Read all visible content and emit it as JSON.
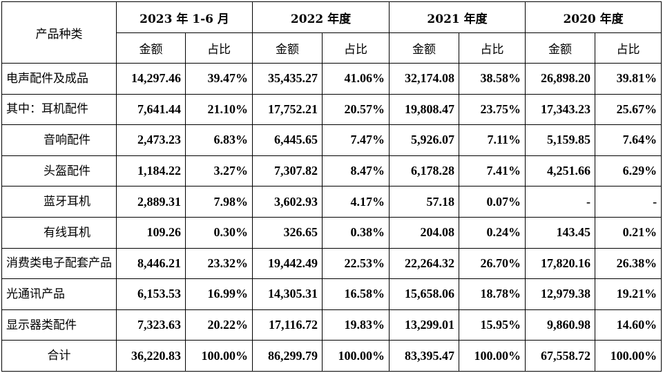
{
  "table": {
    "corner_label": "产品种类",
    "periods": [
      "2023 年 1-6 月",
      "2022 年度",
      "2021 年度",
      "2020 年度"
    ],
    "sub_headers": {
      "amount": "金额",
      "ratio": "占比"
    },
    "rows": [
      {
        "category": "电声配件及成品",
        "indent": false,
        "values": [
          "14,297.46",
          "39.47%",
          "35,435.27",
          "41.06%",
          "32,174.08",
          "38.58%",
          "26,898.20",
          "39.81%"
        ]
      },
      {
        "category": "其中：耳机配件",
        "indent": false,
        "values": [
          "7,641.44",
          "21.10%",
          "17,752.21",
          "20.57%",
          "19,808.47",
          "23.75%",
          "17,343.23",
          "25.67%"
        ]
      },
      {
        "category": "音响配件",
        "indent": true,
        "values": [
          "2,473.23",
          "6.83%",
          "6,445.65",
          "7.47%",
          "5,926.07",
          "7.11%",
          "5,159.85",
          "7.64%"
        ]
      },
      {
        "category": "头盔配件",
        "indent": true,
        "values": [
          "1,184.22",
          "3.27%",
          "7,307.82",
          "8.47%",
          "6,178.28",
          "7.41%",
          "4,251.66",
          "6.29%"
        ]
      },
      {
        "category": "蓝牙耳机",
        "indent": true,
        "values": [
          "2,889.31",
          "7.98%",
          "3,602.93",
          "4.17%",
          "57.18",
          "0.07%",
          "-",
          "-"
        ]
      },
      {
        "category": "有线耳机",
        "indent": true,
        "values": [
          "109.26",
          "0.30%",
          "326.65",
          "0.38%",
          "204.08",
          "0.24%",
          "143.45",
          "0.21%"
        ]
      },
      {
        "category": "消费类电子配套产品",
        "indent": false,
        "values": [
          "8,446.21",
          "23.32%",
          "19,442.49",
          "22.53%",
          "22,264.32",
          "26.70%",
          "17,820.16",
          "26.38%"
        ]
      },
      {
        "category": "光通讯产品",
        "indent": false,
        "values": [
          "6,153.53",
          "16.99%",
          "14,305.31",
          "16.58%",
          "15,658.06",
          "18.78%",
          "12,979.38",
          "19.21%"
        ]
      },
      {
        "category": "显示器类配件",
        "indent": false,
        "values": [
          "7,323.63",
          "20.22%",
          "17,116.72",
          "19.83%",
          "13,299.01",
          "15.95%",
          "9,860.98",
          "14.60%"
        ]
      },
      {
        "category": "合计",
        "indent": false,
        "center": true,
        "values": [
          "36,220.83",
          "100.00%",
          "86,299.79",
          "100.00%",
          "83,395.47",
          "100.00%",
          "67,558.72",
          "100.00%"
        ]
      }
    ]
  }
}
